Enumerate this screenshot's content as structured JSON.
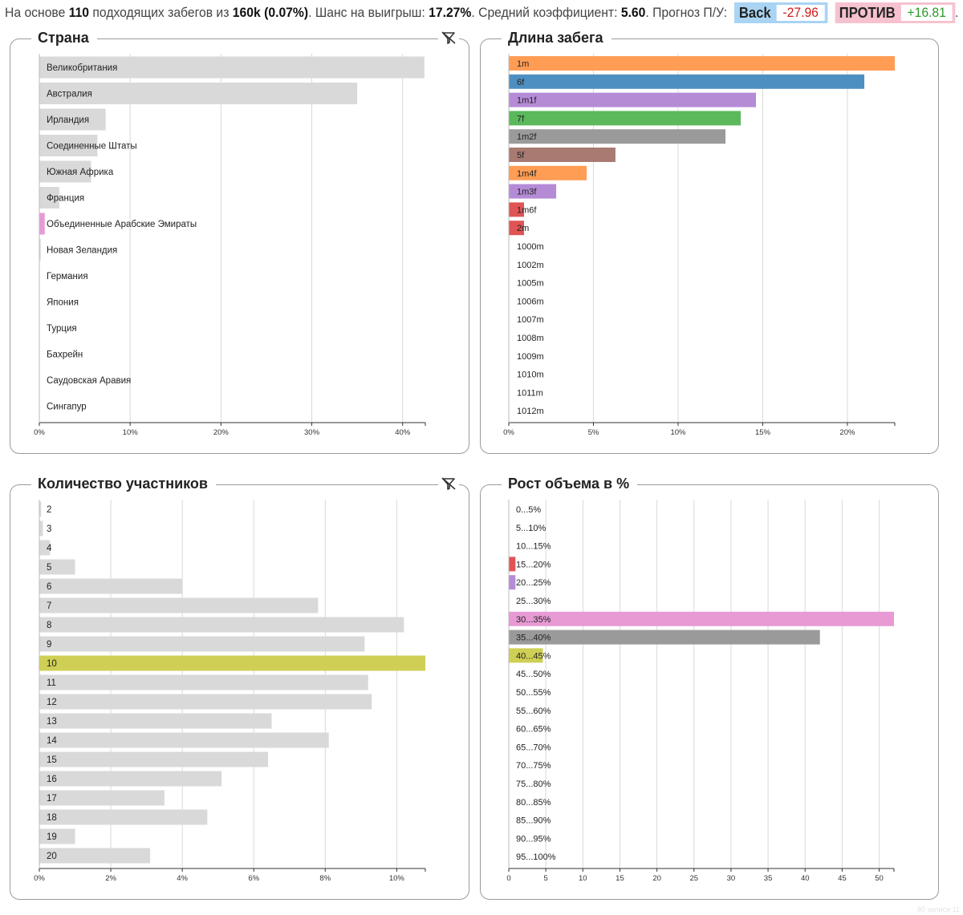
{
  "summary": {
    "prefix": "На основе",
    "matched": "110",
    "mid1": "подходящих забегов из",
    "total": "160k",
    "pct": "(0.07%)",
    "mid2": ". Шанс на выигрыш:",
    "win_chance": "17.27%",
    "mid3": ". Средний коэффициент:",
    "avg_odds": "5.60",
    "mid4": ". Прогноз П/У:",
    "back_label": "Back",
    "back_value": "-27.96",
    "lay_label": "ПРОТИВ",
    "lay_value": "+16.81",
    "end": "."
  },
  "colors": {
    "grey_bar": "#d9d9d9",
    "orange": "#ff9d55",
    "blue": "#4e8fc2",
    "purple": "#b58bd6",
    "green": "#5bb85b",
    "dark_grey": "#9a9a9a",
    "brown": "#a87a72",
    "red": "#e05454",
    "pink": "#e89ad4",
    "olive": "#cfcf55",
    "grid": "#d9d9d9",
    "border": "#9b9b9b"
  },
  "watermark": "80 записи 11",
  "chart_data": [
    {
      "type": "bar",
      "title": "Страна",
      "orientation": "horizontal",
      "xlim": [
        0,
        42.5
      ],
      "x_ticks": [
        0,
        10,
        20,
        30,
        40
      ],
      "x_tick_labels": [
        "0%",
        "10%",
        "20%",
        "30%",
        "40%"
      ],
      "categories": [
        "Великобритания",
        "Австралия",
        "Ирландия",
        "Соединенные Штаты",
        "Южная Африка",
        "Франция",
        "Объединенные Арабские Эмираты",
        "Новая Зеландия",
        "Германия",
        "Япония",
        "Турция",
        "Бахрейн",
        "Саудовская Аравия",
        "Сингапур"
      ],
      "values": [
        42.4,
        35.0,
        7.3,
        6.4,
        5.7,
        2.2,
        0.6,
        0.15,
        0,
        0,
        0,
        0,
        0,
        0
      ],
      "bar_colors": [
        "#d9d9d9",
        "#d9d9d9",
        "#d9d9d9",
        "#d9d9d9",
        "#d9d9d9",
        "#d9d9d9",
        "#e89ad4",
        "#d9d9d9",
        "#d9d9d9",
        "#d9d9d9",
        "#d9d9d9",
        "#d9d9d9",
        "#d9d9d9",
        "#d9d9d9"
      ],
      "has_filter_icon": true
    },
    {
      "type": "bar",
      "title": "Длина забега",
      "orientation": "horizontal",
      "xlim": [
        0,
        22.8
      ],
      "x_ticks": [
        0,
        5,
        10,
        15,
        20
      ],
      "x_tick_labels": [
        "0%",
        "5%",
        "10%",
        "15%",
        "20%"
      ],
      "categories": [
        "1m",
        "6f",
        "1m1f",
        "7f",
        "1m2f",
        "5f",
        "1m4f",
        "1m3f",
        "1m6f",
        "2m",
        "1000m",
        "1002m",
        "1005m",
        "1006m",
        "1007m",
        "1008m",
        "1009m",
        "1010m",
        "1011m",
        "1012m"
      ],
      "values": [
        22.8,
        21.0,
        14.6,
        13.7,
        12.8,
        6.3,
        4.6,
        2.8,
        0.9,
        0.9,
        0,
        0,
        0,
        0,
        0,
        0,
        0,
        0,
        0,
        0
      ],
      "bar_colors": [
        "#ff9d55",
        "#4e8fc2",
        "#b58bd6",
        "#5bb85b",
        "#9a9a9a",
        "#a87a72",
        "#ff9d55",
        "#b58bd6",
        "#e05454",
        "#e05454",
        "#d9d9d9",
        "#d9d9d9",
        "#d9d9d9",
        "#d9d9d9",
        "#d9d9d9",
        "#d9d9d9",
        "#d9d9d9",
        "#d9d9d9",
        "#d9d9d9",
        "#d9d9d9"
      ],
      "has_filter_icon": false
    },
    {
      "type": "bar",
      "title": "Количество участников",
      "orientation": "horizontal",
      "xlim": [
        0,
        10.8
      ],
      "x_ticks": [
        0,
        2,
        4,
        6,
        8,
        10
      ],
      "x_tick_labels": [
        "0%",
        "2%",
        "4%",
        "6%",
        "8%",
        "10%"
      ],
      "categories": [
        "2",
        "3",
        "4",
        "5",
        "6",
        "7",
        "8",
        "9",
        "10",
        "11",
        "12",
        "13",
        "14",
        "15",
        "16",
        "17",
        "18",
        "19",
        "20"
      ],
      "values": [
        0.05,
        0.1,
        0.3,
        1.0,
        4.0,
        7.8,
        10.2,
        9.1,
        10.8,
        9.2,
        9.3,
        6.5,
        8.1,
        6.4,
        5.1,
        3.5,
        4.7,
        1.0,
        3.1
      ],
      "bar_colors": [
        "#d9d9d9",
        "#d9d9d9",
        "#d9d9d9",
        "#d9d9d9",
        "#d9d9d9",
        "#d9d9d9",
        "#d9d9d9",
        "#d9d9d9",
        "#cfcf55",
        "#d9d9d9",
        "#d9d9d9",
        "#d9d9d9",
        "#d9d9d9",
        "#d9d9d9",
        "#d9d9d9",
        "#d9d9d9",
        "#d9d9d9",
        "#d9d9d9",
        "#d9d9d9"
      ],
      "has_filter_icon": true
    },
    {
      "type": "bar",
      "title": "Рост объема в %",
      "orientation": "horizontal",
      "xlim": [
        0,
        52
      ],
      "x_ticks": [
        0,
        5,
        10,
        15,
        20,
        25,
        30,
        35,
        40,
        45,
        50
      ],
      "x_tick_labels": [
        "0",
        "5",
        "10",
        "15",
        "20",
        "25",
        "30",
        "35",
        "40",
        "45",
        "50"
      ],
      "categories": [
        "0...5%",
        "5...10%",
        "10...15%",
        "15...20%",
        "20...25%",
        "25...30%",
        "30...35%",
        "35...40%",
        "40...45%",
        "45...50%",
        "50...55%",
        "55...60%",
        "60...65%",
        "65...70%",
        "70...75%",
        "75...80%",
        "80...85%",
        "85...90%",
        "90...95%",
        "95...100%"
      ],
      "values": [
        0,
        0,
        0,
        0.9,
        0.9,
        0,
        52,
        42,
        4.6,
        0,
        0,
        0,
        0,
        0,
        0,
        0,
        0,
        0,
        0,
        0
      ],
      "bar_colors": [
        "#d9d9d9",
        "#d9d9d9",
        "#d9d9d9",
        "#e05454",
        "#b58bd6",
        "#d9d9d9",
        "#e89ad4",
        "#9a9a9a",
        "#cfcf55",
        "#d9d9d9",
        "#d9d9d9",
        "#d9d9d9",
        "#d9d9d9",
        "#d9d9d9",
        "#d9d9d9",
        "#d9d9d9",
        "#d9d9d9",
        "#d9d9d9",
        "#d9d9d9",
        "#d9d9d9"
      ],
      "has_filter_icon": false
    }
  ]
}
